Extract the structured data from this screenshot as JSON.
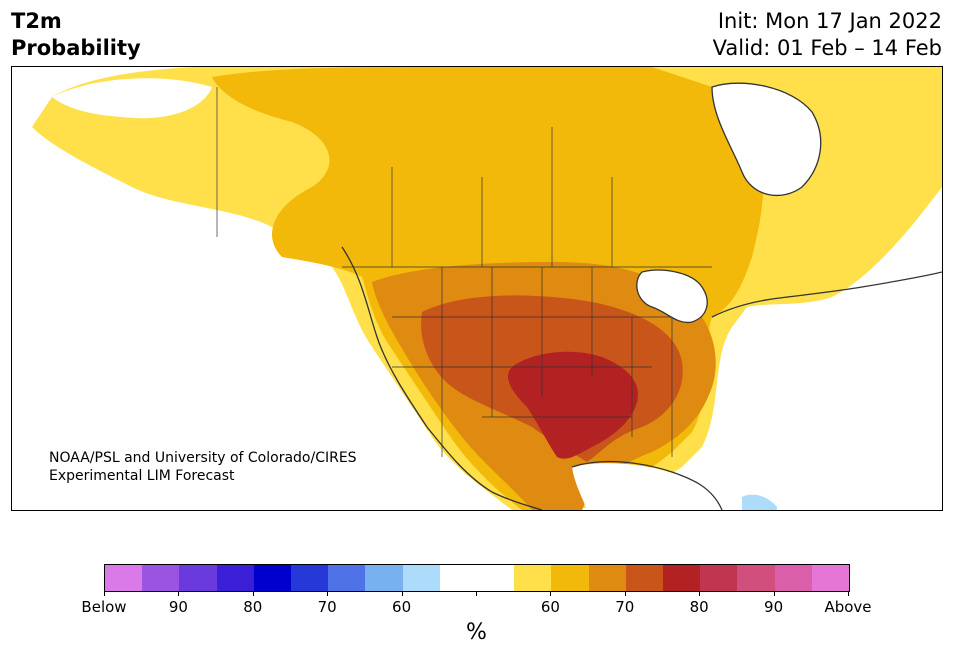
{
  "title": {
    "left_line1": "T2m",
    "left_line2": "Probability",
    "right_line1": "Init: Mon 17 Jan 2022",
    "right_line2": "Valid: 01 Feb – 14 Feb"
  },
  "credit": {
    "line1": "NOAA/PSL and University of Colorado/CIRES",
    "line2": "Experimental LIM Forecast"
  },
  "colorbar": {
    "colors": [
      "#d97ae8",
      "#9b54e0",
      "#6b3adc",
      "#3a1fd6",
      "#0000cc",
      "#2638d8",
      "#4f72e6",
      "#78b0f0",
      "#acdcfa",
      "#ffffff",
      "#ffffff",
      "#ffe04a",
      "#f2b90a",
      "#df8a10",
      "#c8561a",
      "#b22222",
      "#c03650",
      "#d04f7c",
      "#da5faa",
      "#e676d6"
    ],
    "tick_labels": [
      "Below",
      "90",
      "80",
      "70",
      "60",
      "",
      "60",
      "70",
      "80",
      "90",
      "Above"
    ],
    "unit": "%"
  },
  "map": {
    "colors": {
      "land": "#ffffff",
      "p50": "#ffe04a",
      "p55": "#f2b90a",
      "p60": "#df8a10",
      "p65": "#c8561a",
      "p70": "#b22222",
      "below": "#acdcfa",
      "border": "#333333"
    }
  }
}
